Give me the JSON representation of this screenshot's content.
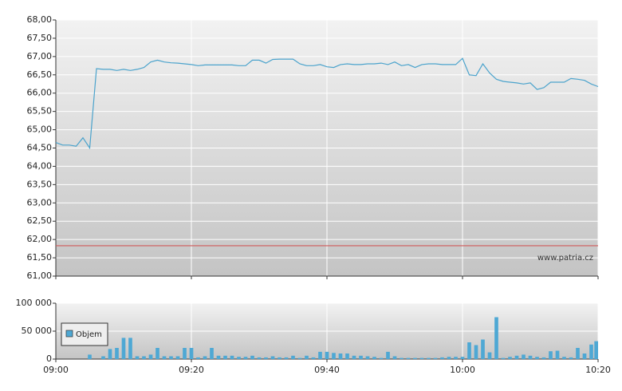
{
  "chart_data": [
    {
      "type": "line",
      "color": "#4ba3cc",
      "x": [
        "09:00",
        "09:01",
        "09:02",
        "09:03",
        "09:04",
        "09:05",
        "09:06",
        "09:07",
        "09:08",
        "09:09",
        "09:10",
        "09:11",
        "09:12",
        "09:13",
        "09:14",
        "09:15",
        "09:16",
        "09:17",
        "09:18",
        "09:19",
        "09:20",
        "09:21",
        "09:22",
        "09:23",
        "09:24",
        "09:25",
        "09:26",
        "09:27",
        "09:28",
        "09:29",
        "09:30",
        "09:31",
        "09:32",
        "09:33",
        "09:34",
        "09:35",
        "09:36",
        "09:37",
        "09:38",
        "09:39",
        "09:40",
        "09:41",
        "09:42",
        "09:43",
        "09:44",
        "09:45",
        "09:46",
        "09:47",
        "09:48",
        "09:49",
        "09:50",
        "09:51",
        "09:52",
        "09:53",
        "09:54",
        "09:55",
        "09:56",
        "09:57",
        "09:58",
        "09:59",
        "10:00",
        "10:01",
        "10:02",
        "10:03",
        "10:04",
        "10:05",
        "10:06",
        "10:07",
        "10:08",
        "10:09",
        "10:10",
        "10:11",
        "10:12",
        "10:13",
        "10:14",
        "10:15",
        "10:16",
        "10:17",
        "10:18",
        "10:19",
        "10:20"
      ],
      "values": [
        64.65,
        64.58,
        64.58,
        64.55,
        64.78,
        64.5,
        66.67,
        66.65,
        66.65,
        66.62,
        66.65,
        66.62,
        66.65,
        66.7,
        66.85,
        66.9,
        66.85,
        66.83,
        66.82,
        66.8,
        66.78,
        66.75,
        66.77,
        66.77,
        66.77,
        66.77,
        66.77,
        66.75,
        66.75,
        66.9,
        66.9,
        66.82,
        66.92,
        66.93,
        66.93,
        66.93,
        66.8,
        66.75,
        66.75,
        66.78,
        66.72,
        66.7,
        66.78,
        66.8,
        66.78,
        66.78,
        66.8,
        66.8,
        66.82,
        66.78,
        66.85,
        66.75,
        66.78,
        66.7,
        66.78,
        66.8,
        66.8,
        66.78,
        66.78,
        66.78,
        66.95,
        66.5,
        66.48,
        66.8,
        66.55,
        66.38,
        66.32,
        66.3,
        66.28,
        66.25,
        66.28,
        66.1,
        66.15,
        66.3,
        66.3,
        66.3,
        66.4,
        66.38,
        66.35,
        66.25,
        66.18
      ],
      "xlim": [
        "09:00",
        "10:20"
      ],
      "xticks": [
        "09:00",
        "09:20",
        "09:40",
        "10:00",
        "10:20"
      ],
      "ylim": [
        61,
        68
      ],
      "yticks": [
        {
          "value": 61,
          "label": "61,00"
        },
        {
          "value": 61.5,
          "label": "61,50"
        },
        {
          "value": 62,
          "label": "62,00"
        },
        {
          "value": 62.5,
          "label": "62,50"
        },
        {
          "value": 63,
          "label": "63,00"
        },
        {
          "value": 63.5,
          "label": "63,50"
        },
        {
          "value": 64,
          "label": "64,00"
        },
        {
          "value": 64.5,
          "label": "64,50"
        },
        {
          "value": 65,
          "label": "65,00"
        },
        {
          "value": 65.5,
          "label": "65,50"
        },
        {
          "value": 66,
          "label": "66,00"
        },
        {
          "value": 66.5,
          "label": "66,50"
        },
        {
          "value": 67,
          "label": "67,00"
        },
        {
          "value": 67.5,
          "label": "67,50"
        },
        {
          "value": 68,
          "label": "68,00"
        }
      ],
      "reference_line": 61.83,
      "reference_color": "#d05a5a",
      "watermark": "www.patria.cz",
      "grid": true
    },
    {
      "type": "bar",
      "x": [
        "09:00",
        "09:01",
        "09:02",
        "09:03",
        "09:04",
        "09:05",
        "09:06",
        "09:07",
        "09:08",
        "09:09",
        "09:10",
        "09:11",
        "09:12",
        "09:13",
        "09:14",
        "09:15",
        "09:16",
        "09:17",
        "09:18",
        "09:19",
        "09:20",
        "09:21",
        "09:22",
        "09:23",
        "09:24",
        "09:25",
        "09:26",
        "09:27",
        "09:28",
        "09:29",
        "09:30",
        "09:31",
        "09:32",
        "09:33",
        "09:34",
        "09:35",
        "09:36",
        "09:37",
        "09:38",
        "09:39",
        "09:40",
        "09:41",
        "09:42",
        "09:43",
        "09:44",
        "09:45",
        "09:46",
        "09:47",
        "09:48",
        "09:49",
        "09:50",
        "09:51",
        "09:52",
        "09:53",
        "09:54",
        "09:55",
        "09:56",
        "09:57",
        "09:58",
        "09:59",
        "10:00",
        "10:01",
        "10:02",
        "10:03",
        "10:04",
        "10:05",
        "10:06",
        "10:07",
        "10:08",
        "10:09",
        "10:10",
        "10:11",
        "10:12",
        "10:13",
        "10:14",
        "10:15",
        "10:16",
        "10:17",
        "10:18",
        "10:19",
        "10:20"
      ],
      "series": [
        {
          "name": "Objem",
          "color": "#4ea8d4",
          "values": [
            0,
            0,
            0,
            0,
            0,
            8000,
            0,
            5000,
            18000,
            20000,
            38000,
            38000,
            5000,
            5000,
            8000,
            20000,
            5000,
            5000,
            5000,
            20000,
            20000,
            3000,
            5000,
            20000,
            6000,
            6000,
            6000,
            4000,
            4000,
            6000,
            3000,
            3000,
            5000,
            3000,
            3000,
            6000,
            2000,
            6000,
            3000,
            13000,
            13000,
            11000,
            10000,
            10000,
            6000,
            6000,
            5000,
            4000,
            2000,
            13000,
            5000,
            2000,
            2000,
            2000,
            2000,
            2000,
            2000,
            3000,
            4000,
            4000,
            4000,
            30000,
            25000,
            35000,
            12000,
            75000,
            2000,
            4000,
            6000,
            8000,
            6000,
            4000,
            3000,
            14000,
            15000,
            4000,
            3000,
            20000,
            10000,
            26000,
            32000
          ]
        }
      ],
      "xlim": [
        "09:00",
        "10:20"
      ],
      "xticks": [
        "09:00",
        "09:20",
        "09:40",
        "10:00",
        "10:20"
      ],
      "ylim": [
        0,
        100000
      ],
      "yticks": [
        0,
        {
          "value": 50000,
          "label": "50 000"
        },
        {
          "value": 100000,
          "label": "100 000"
        }
      ],
      "grid": true
    }
  ]
}
